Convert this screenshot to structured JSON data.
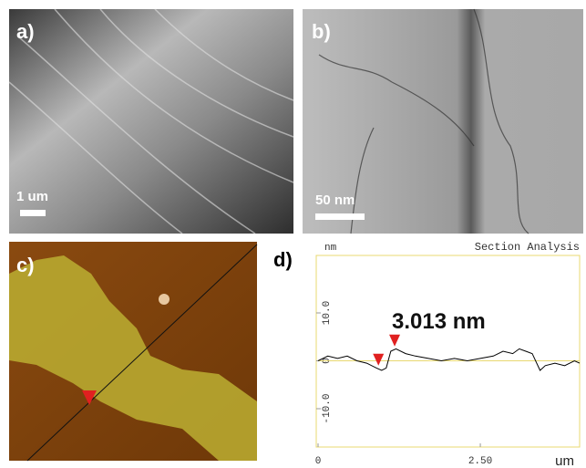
{
  "panels": {
    "a": {
      "label": "a)",
      "scale_bar": "1 um"
    },
    "b": {
      "label": "b)",
      "scale_bar": "50 nm"
    },
    "c": {
      "label": "c)"
    },
    "d": {
      "label": "d)"
    }
  },
  "chart_data": {
    "type": "line",
    "title": "Section Analysis",
    "y_unit": "nm",
    "x_unit": "um",
    "annotation": "3.013 nm",
    "x": [
      0,
      0.15,
      0.3,
      0.45,
      0.6,
      0.75,
      0.9,
      0.98,
      1.05,
      1.12,
      1.2,
      1.35,
      1.5,
      1.7,
      1.9,
      2.1,
      2.3,
      2.5,
      2.7,
      2.85,
      3.0,
      3.1,
      3.2,
      3.3,
      3.42,
      3.5,
      3.65,
      3.8,
      3.95,
      4.03
    ],
    "values": [
      0,
      1,
      0.5,
      1,
      0,
      -0.5,
      -1.5,
      -2,
      -1.5,
      2,
      2.5,
      1.5,
      1,
      0.5,
      0,
      0.5,
      0,
      0.5,
      1,
      2,
      1.5,
      2.5,
      2,
      1.5,
      -2,
      -1,
      -0.5,
      -1,
      0,
      -0.5
    ],
    "color": "#000000",
    "markers": {
      "x": [
        0.93,
        1.18
      ],
      "values": [
        -1,
        3
      ],
      "color": "#e02020"
    },
    "xlim": [
      0,
      4.03
    ],
    "ylim": [
      -18,
      22
    ],
    "xticks": [
      0,
      {
        "value": 2.5,
        "label": "2.50"
      }
    ],
    "yticks": [
      {
        "value": 10,
        "label": "10.0"
      },
      0,
      {
        "value": -10,
        "label": "-10.0"
      }
    ],
    "zero_line_color": "#e8d870"
  }
}
